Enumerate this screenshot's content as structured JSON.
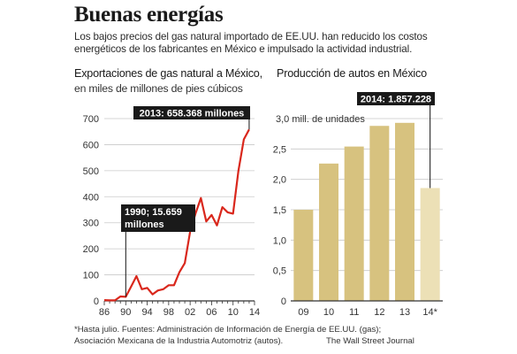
{
  "headline": "Buenas energías",
  "intro": {
    "line1": "Los bajos precios del gas natural importado de EE.UU. han reducido los costos",
    "line2": "energéticos de los fabricantes en México e impulsado la actividad industrial."
  },
  "footer": {
    "note_line1": "*Hasta julio.  Fuentes: Administración de Información de Energía de EE.UU. (gas);",
    "note_line2": "Asociación Mexicana de la Industria Automotriz (autos).",
    "credit": "The Wall Street Journal"
  },
  "colors": {
    "line": "#d9271c",
    "bar": "#d7c27f",
    "bar_partial": "#ece0b6",
    "grid": "#c9c9c9",
    "axis": "#333333",
    "label_bg": "#1a1a1a",
    "label_text": "#ffffff"
  },
  "chart_data": [
    {
      "type": "line",
      "title": "Exportaciones de gas natural a México,",
      "subtitle": "en miles de millones de pies cúbicos",
      "ylim": [
        0,
        700
      ],
      "xlim": [
        1986,
        2014
      ],
      "yticks": [
        0,
        100,
        200,
        300,
        400,
        500,
        600,
        700
      ],
      "ytick_labels": [
        "0",
        "100",
        "200",
        "300",
        "400",
        "500",
        "600",
        "700"
      ],
      "xticks": [
        1986,
        1990,
        1994,
        1998,
        2002,
        2006,
        2010,
        2014
      ],
      "xtick_labels": [
        "86",
        "90",
        "94",
        "98",
        "02",
        "06",
        "10",
        "14"
      ],
      "grid": true,
      "series": [
        {
          "x": [
            1986,
            1987,
            1988,
            1989,
            1990,
            1991,
            1992,
            1993,
            1994,
            1995,
            1996,
            1997,
            1998,
            1999,
            2000,
            2001,
            2002,
            2003,
            2004,
            2005,
            2006,
            2007,
            2008,
            2009,
            2010,
            2011,
            2012,
            2013
          ],
          "y": [
            3,
            2,
            2,
            17,
            15.659,
            55,
            95,
            45,
            50,
            25,
            40,
            45,
            60,
            60,
            110,
            145,
            265,
            335,
            395,
            305,
            330,
            290,
            360,
            340,
            335,
            500,
            620,
            658.368
          ]
        }
      ],
      "annotations": [
        {
          "text": "2013: 658.368 millones",
          "x": 2013,
          "y": 658.368
        },
        {
          "text_lines": [
            "1990; 15.659",
            "millones"
          ],
          "x": 1990,
          "y": 15.659
        }
      ]
    },
    {
      "type": "bar",
      "title": "Producción de autos en México",
      "ylabel": "3,0 mill. de unidades",
      "ylim": [
        0,
        3.0
      ],
      "yticks": [
        0,
        0.5,
        1.0,
        1.5,
        2.0,
        2.5,
        3.0
      ],
      "ytick_labels": [
        "0",
        "0,5",
        "1,0",
        "1,5",
        "2,0",
        "2,5",
        ""
      ],
      "grid": true,
      "categories": [
        "09",
        "10",
        "11",
        "12",
        "13",
        "14*"
      ],
      "values": [
        1.5,
        2.26,
        2.54,
        2.88,
        2.93,
        1.857228
      ],
      "partial": [
        false,
        false,
        false,
        false,
        false,
        true
      ],
      "annotations": [
        {
          "text": "2014: 1.857.228",
          "category": "14*",
          "y": 1.857228
        }
      ]
    }
  ]
}
